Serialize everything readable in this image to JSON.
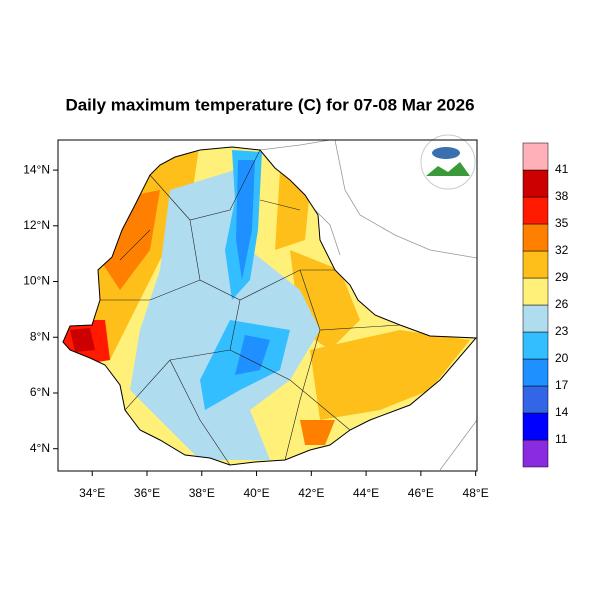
{
  "chart_data": {
    "type": "map",
    "title": "Daily maximum temperature (C) for 07-08 Mar 2026",
    "xlim": [
      32.75,
      48.05
    ],
    "ylim": [
      3.2,
      15.08
    ],
    "xticks": [
      {
        "value": 34,
        "label": "34°E"
      },
      {
        "value": 36,
        "label": "36°E"
      },
      {
        "value": 38,
        "label": "38°E"
      },
      {
        "value": 40,
        "label": "40°E"
      },
      {
        "value": 42,
        "label": "42°E"
      },
      {
        "value": 44,
        "label": "44°E"
      },
      {
        "value": 46,
        "label": "46°E"
      },
      {
        "value": 48,
        "label": "48°E"
      }
    ],
    "yticks": [
      {
        "value": 4,
        "label": "4°N"
      },
      {
        "value": 6,
        "label": "6°N"
      },
      {
        "value": 8,
        "label": "8°N"
      },
      {
        "value": 10,
        "label": "10°N"
      },
      {
        "value": 12,
        "label": "12°N"
      },
      {
        "value": 14,
        "label": "14°N"
      }
    ],
    "colorbar": {
      "levels": [
        11,
        14,
        17,
        20,
        23,
        26,
        29,
        32,
        35,
        38,
        41
      ],
      "colors": [
        "#8a2be2",
        "#0000ff",
        "#3366e6",
        "#1e90ff",
        "#33bfff",
        "#b0dcf0",
        "#fff07a",
        "#ffbf1a",
        "#ff8000",
        "#ff1a00",
        "#cc0000",
        "#ffb0b8"
      ]
    }
  }
}
